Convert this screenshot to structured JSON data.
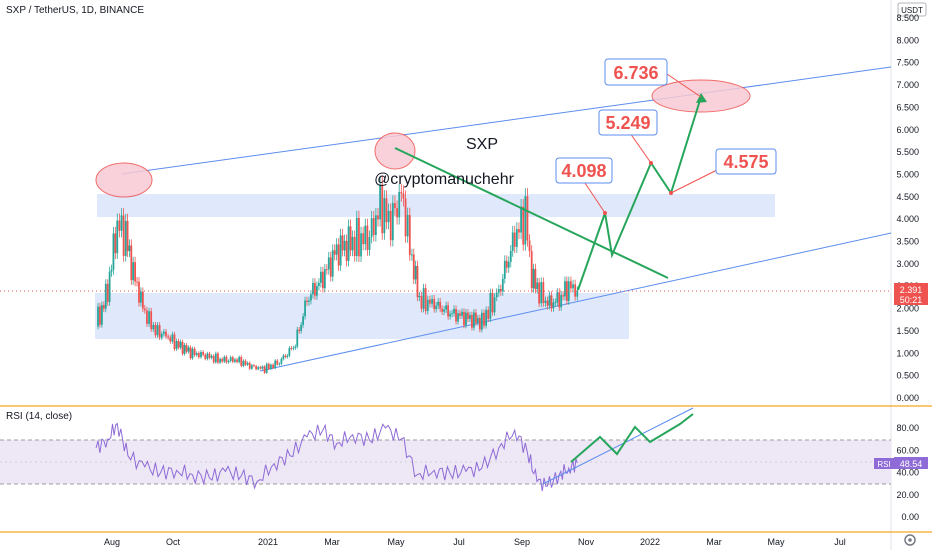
{
  "header": {
    "symbol_title": "SXP / TetherUS, 1D, BINANCE"
  },
  "watermark": {
    "symbol": "SXP",
    "author": "@cryptomanuchehr"
  },
  "price_axis": {
    "unit": "USDT",
    "ticks": [
      "8.500",
      "8.000",
      "7.500",
      "7.000",
      "6.500",
      "6.000",
      "5.500",
      "5.000",
      "4.500",
      "4.000",
      "3.500",
      "3.000",
      "2.500",
      "2.000",
      "1.500",
      "1.000",
      "0.500",
      "0.000"
    ],
    "last_price": "2.391",
    "countdown": "50:21"
  },
  "rsi": {
    "label": "RSI (14, close)",
    "ticks": [
      "80.00",
      "60.00",
      "40.00",
      "20.00",
      "0.00"
    ],
    "badge_label": "RSI",
    "badge_value": "48.54",
    "band_upper": 70,
    "band_lower": 30
  },
  "time_axis": {
    "labels": [
      "Aug",
      "Oct",
      "2021",
      "Mar",
      "May",
      "Jul",
      "Sep",
      "Nov",
      "2022",
      "Mar",
      "May",
      "Jul"
    ]
  },
  "annotations": {
    "targets": [
      "4.098",
      "5.249",
      "4.575",
      "6.736"
    ]
  },
  "colors": {
    "up": "#26a69a",
    "down": "#ef5350",
    "trendline": "#5b8def",
    "zone": "#dde5fb",
    "projection": "#26a65b",
    "target_text": "#ef5350",
    "rsi_line": "#8e6bd6",
    "rsi_band": "#ede7f6",
    "ellipse": "#f8c9d4",
    "axis_border": "#f5a623"
  },
  "chart_data": {
    "type": "candlestick",
    "title": "SXP / TetherUS, 1D, BINANCE",
    "y_unit": "USDT",
    "ylim": [
      0,
      8.8
    ],
    "x_range": [
      "2020-07-20",
      "2022-08-10"
    ],
    "series": [
      {
        "name": "SXP / TetherUS",
        "kind": "price",
        "x": [
          "2020-07-21",
          "2020-08-01",
          "2020-08-10",
          "2020-08-18",
          "2020-08-25",
          "2020-09-05",
          "2020-09-15",
          "2020-09-25",
          "2020-10-05",
          "2020-10-20",
          "2020-11-01",
          "2020-11-15",
          "2020-12-01",
          "2020-12-15",
          "2020-12-27",
          "2021-01-10",
          "2021-01-25",
          "2021-02-05",
          "2021-02-20",
          "2021-03-05",
          "2021-03-20",
          "2021-04-05",
          "2021-04-15",
          "2021-04-25",
          "2021-05-05",
          "2021-05-15",
          "2021-05-22",
          "2021-06-05",
          "2021-06-20",
          "2021-07-05",
          "2021-07-20",
          "2021-08-05",
          "2021-08-20",
          "2021-08-30",
          "2021-09-05",
          "2021-09-12",
          "2021-09-20",
          "2021-10-01",
          "2021-10-10",
          "2021-10-18"
        ],
        "y": [
          1.6,
          2.4,
          3.9,
          3.6,
          2.8,
          1.9,
          1.5,
          1.4,
          1.2,
          1.0,
          0.95,
          0.85,
          0.85,
          0.7,
          0.65,
          0.8,
          1.2,
          2.2,
          2.7,
          3.3,
          3.5,
          3.6,
          4.3,
          3.9,
          4.6,
          3.1,
          2.2,
          2.1,
          1.9,
          1.8,
          1.7,
          2.4,
          3.6,
          4.1,
          2.7,
          2.4,
          2.1,
          2.2,
          2.5,
          2.39
        ]
      },
      {
        "name": "RSI (14, close)",
        "kind": "rsi",
        "x": [
          "2020-07-21",
          "2020-08-01",
          "2020-08-10",
          "2020-08-20",
          "2020-09-05",
          "2020-09-20",
          "2020-10-05",
          "2020-10-20",
          "2020-11-05",
          "2020-11-20",
          "2020-12-05",
          "2020-12-20",
          "2021-01-05",
          "2021-01-20",
          "2021-02-05",
          "2021-02-20",
          "2021-03-05",
          "2021-03-20",
          "2021-04-05",
          "2021-04-20",
          "2021-05-05",
          "2021-05-20",
          "2021-06-05",
          "2021-06-20",
          "2021-07-05",
          "2021-07-20",
          "2021-08-05",
          "2021-08-20",
          "2021-09-01",
          "2021-09-10",
          "2021-09-20",
          "2021-10-01",
          "2021-10-10",
          "2021-10-18"
        ],
        "y": [
          62,
          70,
          84,
          55,
          45,
          40,
          42,
          38,
          35,
          41,
          37,
          32,
          48,
          55,
          72,
          78,
          66,
          74,
          69,
          80,
          70,
          38,
          42,
          39,
          41,
          44,
          62,
          78,
          58,
          32,
          28,
          38,
          44,
          48.54
        ]
      }
    ]
  }
}
